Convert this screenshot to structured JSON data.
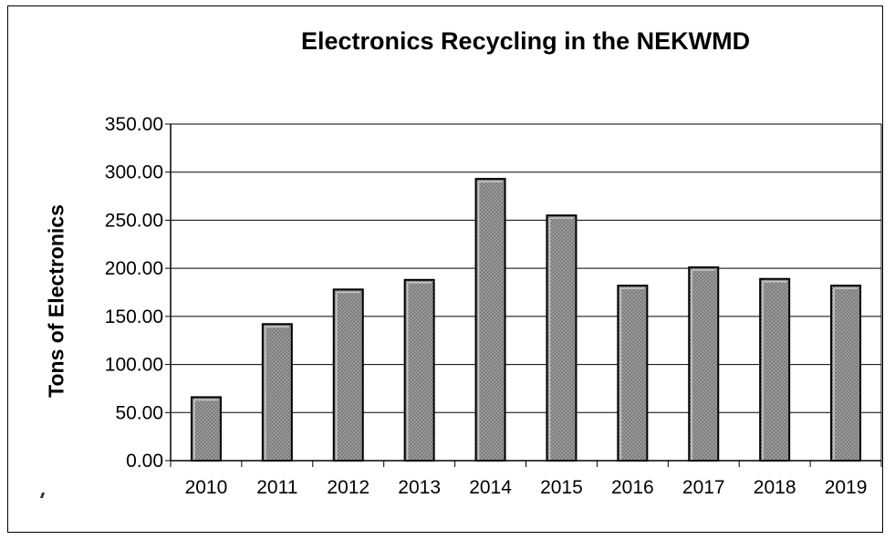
{
  "chart_data": {
    "type": "bar",
    "title": "Electronics Recycling in the NEKWMD",
    "xlabel": "",
    "ylabel": "Tons of Electronics",
    "categories": [
      "2010",
      "2011",
      "2012",
      "2013",
      "2014",
      "2015",
      "2016",
      "2017",
      "2018",
      "2019"
    ],
    "values": [
      66,
      142,
      178,
      188,
      293,
      255,
      182,
      201,
      189,
      182
    ],
    "ylim": [
      0,
      350
    ],
    "yticks": [
      "0.00",
      "50.00",
      "100.00",
      "150.00",
      "200.00",
      "250.00",
      "300.00",
      "350.00"
    ],
    "grid": true,
    "legend": "none",
    "bar_color": "#8a8a8a"
  }
}
